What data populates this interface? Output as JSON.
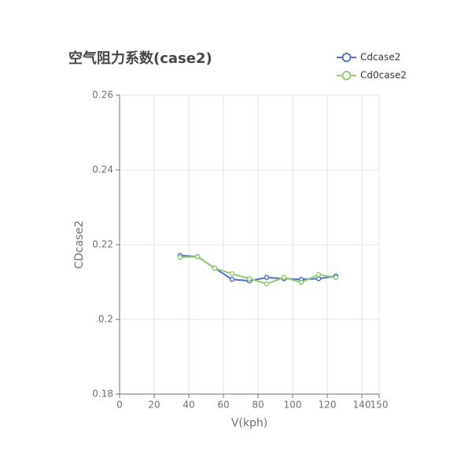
{
  "chart_data": {
    "type": "line",
    "title": "空气阻力系数(case2)",
    "x_label": "V(kph)",
    "y_label": "CDcase2",
    "x": [
      35,
      45,
      55,
      65,
      75,
      85,
      95,
      105,
      115,
      125
    ],
    "series": [
      {
        "name": "Cdcase2",
        "color": "#5470c6",
        "values": [
          0.2171,
          0.2168,
          0.2137,
          0.2107,
          0.2103,
          0.2112,
          0.2109,
          0.2107,
          0.2109,
          0.2116
        ]
      },
      {
        "name": "Cd0case2",
        "color": "#91cc75",
        "values": [
          0.2166,
          0.2168,
          0.2137,
          0.2122,
          0.2109,
          0.2095,
          0.2112,
          0.2099,
          0.212,
          0.2112
        ]
      }
    ],
    "xlim": [
      0,
      150
    ],
    "xticks": [
      0,
      20,
      40,
      60,
      80,
      100,
      120,
      140,
      150
    ],
    "ylim": [
      0.18,
      0.26
    ],
    "yticks": [
      0.18,
      0.2,
      0.22,
      0.24,
      0.26
    ],
    "grid": true,
    "legend": "top-right"
  }
}
